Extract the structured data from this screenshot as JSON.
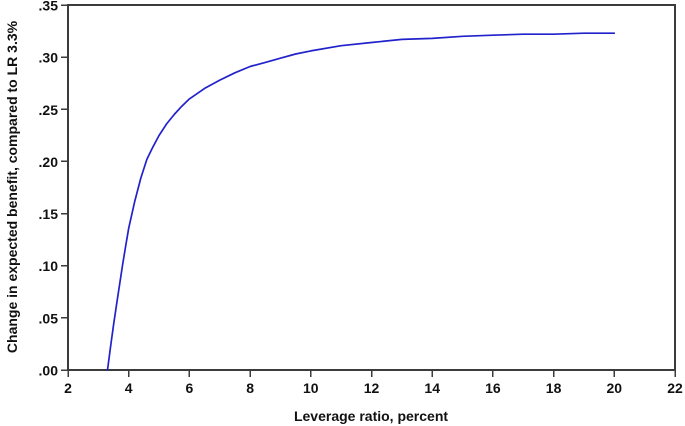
{
  "figure": {
    "background": "#ffffff",
    "frame_color": "#3b3b3b",
    "text_color": "#111111"
  },
  "chart_data": {
    "type": "line",
    "title": "",
    "xlabel": "Leverage ratio, percent",
    "ylabel": "Change in expected benefit, compared to LR 3.3%",
    "xlim": [
      2,
      22
    ],
    "ylim": [
      0,
      0.35
    ],
    "grid": false,
    "legend": "none",
    "x_ticks": [
      2,
      4,
      6,
      8,
      10,
      12,
      14,
      16,
      18,
      20,
      22
    ],
    "x_tick_labels": [
      "2",
      "4",
      "6",
      "8",
      "10",
      "12",
      "14",
      "16",
      "18",
      "20",
      "22"
    ],
    "y_ticks": [
      0,
      0.05,
      0.1,
      0.15,
      0.2,
      0.25,
      0.3,
      0.35
    ],
    "y_tick_labels": [
      ".00",
      ".05",
      ".10",
      ".15",
      ".20",
      ".25",
      ".30",
      ".35"
    ],
    "series": [
      {
        "name": "Change in expected benefit, compared to LR 3.3%",
        "color": "#2222cc",
        "x": [
          3.3,
          3.4,
          3.5,
          3.6,
          3.7,
          3.8,
          3.9,
          4.0,
          4.2,
          4.4,
          4.6,
          4.8,
          5.0,
          5.25,
          5.5,
          5.75,
          6.0,
          6.5,
          7.0,
          7.5,
          8.0,
          8.5,
          9.0,
          9.5,
          10.0,
          11.0,
          12.0,
          13.0,
          14.0,
          15.0,
          16.0,
          17.0,
          18.0,
          19.0,
          20.0
        ],
        "y": [
          0.0,
          0.022,
          0.043,
          0.063,
          0.082,
          0.101,
          0.119,
          0.136,
          0.162,
          0.184,
          0.202,
          0.214,
          0.225,
          0.236,
          0.245,
          0.253,
          0.26,
          0.27,
          0.278,
          0.285,
          0.291,
          0.295,
          0.299,
          0.303,
          0.306,
          0.311,
          0.314,
          0.317,
          0.318,
          0.32,
          0.321,
          0.322,
          0.322,
          0.323,
          0.323
        ]
      }
    ]
  }
}
